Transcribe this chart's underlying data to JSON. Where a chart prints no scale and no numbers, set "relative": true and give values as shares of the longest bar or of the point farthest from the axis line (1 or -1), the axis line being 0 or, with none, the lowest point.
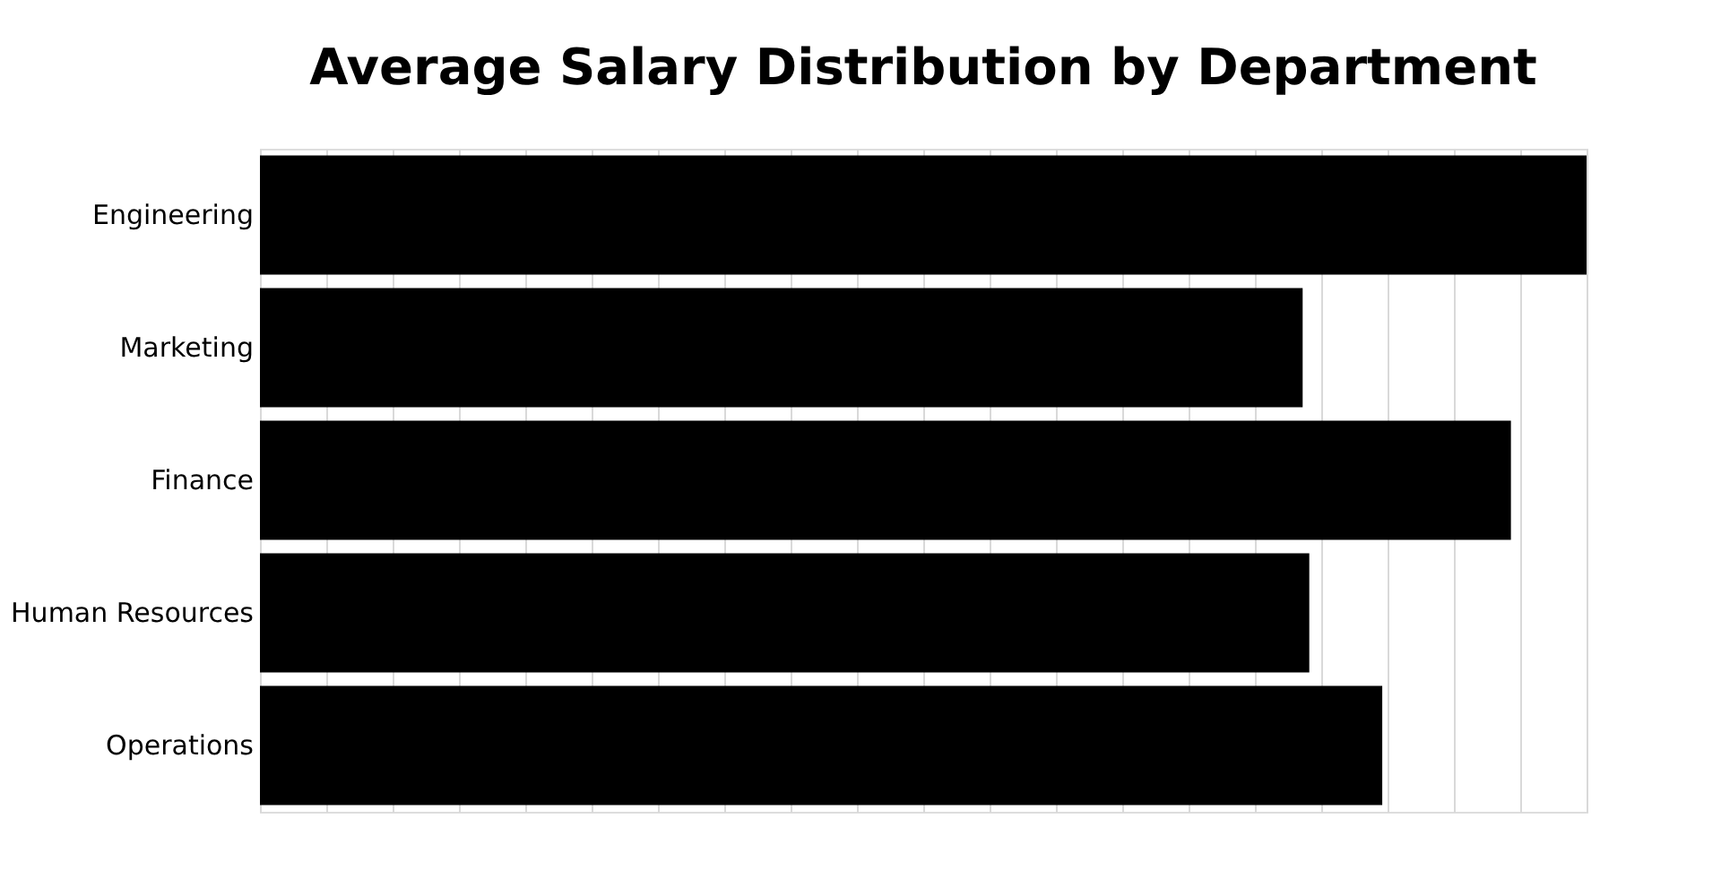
{
  "chart_data": {
    "type": "bar",
    "orientation": "horizontal",
    "relative": true,
    "title": "Average Salary Distribution by Department",
    "categories": [
      "Engineering",
      "Marketing",
      "Finance",
      "Human Resources",
      "Operations"
    ],
    "values": [
      1,
      0.786,
      0.943,
      0.791,
      0.846
    ],
    "color": "#000000",
    "grid": "x",
    "tick_labels": "y"
  }
}
